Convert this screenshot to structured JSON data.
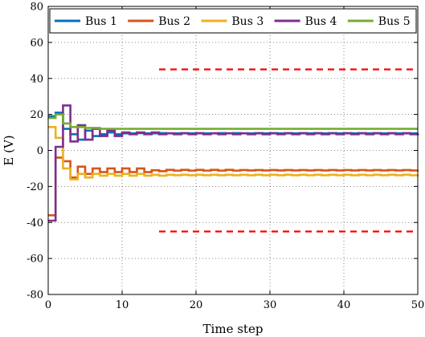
{
  "chart_data": {
    "type": "line",
    "step": true,
    "xlabel": "Time step",
    "ylabel": "E (V)",
    "xlim": [
      0,
      50
    ],
    "ylim": [
      -80,
      80
    ],
    "xticks": [
      0,
      10,
      20,
      30,
      40,
      50
    ],
    "yticks": [
      -80,
      -60,
      -40,
      -20,
      0,
      20,
      40,
      60,
      80
    ],
    "grid": true,
    "grid_style": "dotted",
    "legend_location": "top",
    "legend_orientation": "horizontal",
    "x": [
      0,
      1,
      2,
      3,
      4,
      5,
      6,
      7,
      8,
      9,
      10,
      11,
      12,
      13,
      14,
      15,
      16,
      17,
      18,
      19,
      20,
      21,
      22,
      23,
      24,
      25,
      26,
      27,
      28,
      29,
      30,
      31,
      32,
      33,
      34,
      35,
      36,
      37,
      38,
      39,
      40,
      41,
      42,
      43,
      44,
      45,
      46,
      47,
      48,
      49,
      50
    ],
    "series": [
      {
        "name": "Bus 1",
        "color": "#0072BD",
        "values": [
          19,
          21,
          12,
          9,
          6,
          11,
          8,
          9,
          10,
          9,
          9.5,
          9.5,
          9.6,
          9.5,
          9.5,
          9.6,
          9.5,
          9.5,
          9.6,
          9.5,
          9.6,
          9.5,
          9.5,
          9.6,
          9.5,
          9.6,
          9.5,
          9.5,
          9.6,
          9.5,
          9.6,
          9.5,
          9.6,
          9.5,
          9.6,
          9.5,
          9.6,
          9.5,
          9.6,
          9.5,
          9.6,
          9.5,
          9.6,
          9.5,
          9.6,
          9.5,
          9.6,
          9.5,
          9.6,
          9.5,
          9.6
        ]
      },
      {
        "name": "Bus 2",
        "color": "#D95319",
        "values": [
          -36,
          -4,
          -6,
          -15,
          -9,
          -13,
          -10,
          -12,
          -10,
          -12,
          -10,
          -12,
          -10,
          -12,
          -11,
          -11.5,
          -10.8,
          -11.2,
          -10.8,
          -11.2,
          -10.8,
          -11.2,
          -10.8,
          -11.2,
          -10.8,
          -11.2,
          -10.9,
          -11.1,
          -10.9,
          -11.1,
          -10.9,
          -11.1,
          -10.9,
          -11.1,
          -10.9,
          -11.1,
          -10.9,
          -11.1,
          -10.9,
          -11.1,
          -10.9,
          -11.1,
          -10.9,
          -11.1,
          -10.9,
          -11.1,
          -10.9,
          -11.1,
          -10.9,
          -11.1,
          -11
        ]
      },
      {
        "name": "Bus 3",
        "color": "#EDB120",
        "values": [
          13,
          7,
          -10,
          -16,
          -13,
          -15,
          -13,
          -14,
          -13,
          -14,
          -13,
          -14,
          -13,
          -14,
          -13.5,
          -14,
          -13.5,
          -13.8,
          -13.5,
          -13.8,
          -13.5,
          -13.8,
          -13.5,
          -13.8,
          -13.5,
          -13.8,
          -13.5,
          -13.8,
          -13.5,
          -13.8,
          -13.5,
          -13.8,
          -13.5,
          -13.8,
          -13.5,
          -13.8,
          -13.5,
          -13.8,
          -13.5,
          -13.8,
          -13.5,
          -13.8,
          -13.5,
          -13.8,
          -13.5,
          -13.8,
          -13.5,
          -13.8,
          -13.5,
          -13.8,
          -13.6
        ]
      },
      {
        "name": "Bus 4",
        "color": "#7E2F8E",
        "values": [
          -39,
          2,
          25,
          5,
          14,
          6,
          12,
          8,
          11,
          8,
          10,
          9,
          10,
          9,
          10,
          9,
          9.5,
          9,
          9.5,
          9,
          9.5,
          9,
          9.5,
          9,
          9.5,
          9,
          9.5,
          9,
          9.5,
          9,
          9.5,
          9,
          9.5,
          9,
          9.5,
          9,
          9.5,
          9,
          9.5,
          9,
          9.5,
          9,
          9.5,
          9,
          9.5,
          9,
          9.5,
          9,
          9.5,
          9,
          9.2
        ]
      },
      {
        "name": "Bus 5",
        "color": "#77AC30",
        "values": [
          18,
          20,
          15,
          13,
          13,
          12.5,
          12.5,
          12,
          12,
          12,
          12,
          12,
          12,
          12,
          12,
          12,
          12,
          12,
          12,
          12,
          12,
          12,
          12,
          12,
          12,
          12,
          12,
          12,
          12,
          12,
          12,
          12,
          12,
          12,
          12,
          12,
          12,
          12,
          12,
          12,
          12,
          12,
          12,
          12,
          12,
          12,
          12,
          12,
          12,
          12,
          12
        ]
      }
    ],
    "reference_lines": [
      {
        "x": [
          15,
          50
        ],
        "y": 45,
        "color": "#FF0000",
        "style": "dashed"
      },
      {
        "x": [
          15,
          50
        ],
        "y": -45,
        "color": "#FF0000",
        "style": "dashed"
      }
    ]
  }
}
